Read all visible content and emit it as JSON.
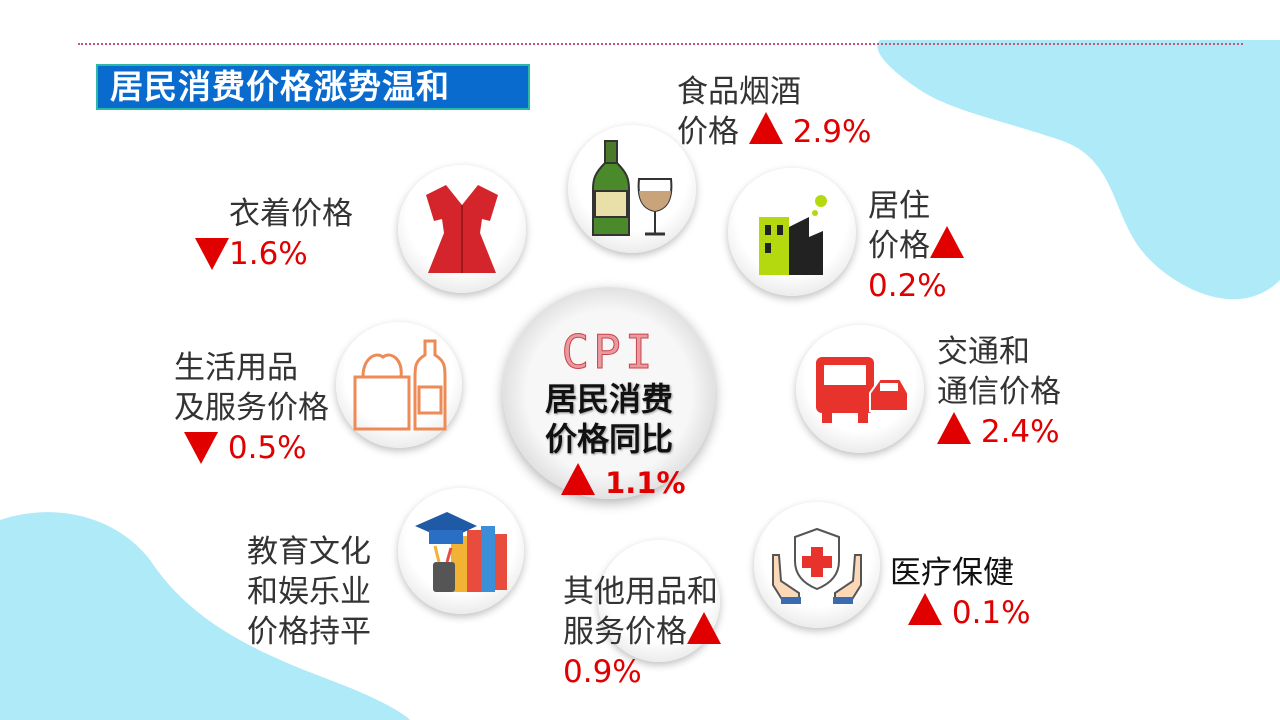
{
  "title": "居民消费价格涨势温和",
  "colors": {
    "title_bg": "#0a6bcf",
    "up_down": "#e00000",
    "blob": "#aeeaf8"
  },
  "center": {
    "logo": "CPI",
    "line1": "居民消费",
    "line2": "价格同比",
    "direction": "up",
    "value": "1.1%"
  },
  "items": [
    {
      "icon": "wine-bottle-glass-icon",
      "line1": "食品烟酒",
      "line2": "价格",
      "direction": "up",
      "value": "2.9%"
    },
    {
      "icon": "building-icon",
      "line1": "居住",
      "line2": "价格",
      "direction": "up",
      "value": "0.2%"
    },
    {
      "icon": "truck-car-icon",
      "line1": "交通和",
      "line2": "通信价格",
      "direction": "up",
      "value": "2.4%"
    },
    {
      "icon": "medical-hands-shield-icon",
      "line1": "医疗保健",
      "direction": "up",
      "value": "0.1%"
    },
    {
      "icon": "other-goods-icon",
      "line1": "其他用品和",
      "line2": "服务价格",
      "direction": "up",
      "value": "0.9%"
    },
    {
      "icon": "books-graduation-icon",
      "line1": "教育文化",
      "line2": "和娱乐业",
      "line3": "价格持平"
    },
    {
      "icon": "grocery-bottle-icon",
      "line1": "生活用品",
      "line2": "及服务价格",
      "direction": "down",
      "value": "0.5%"
    },
    {
      "icon": "dress-icon",
      "line1": "衣着价格",
      "direction": "down",
      "value": "1.6%"
    }
  ]
}
